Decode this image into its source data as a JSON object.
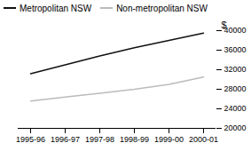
{
  "chart_data": {
    "type": "line",
    "categories": [
      "1995-96",
      "1996-97",
      "1997-98",
      "1998-99",
      "1999-00",
      "2000-01"
    ],
    "series": [
      {
        "name": "Metropolitan NSW",
        "color": "#111111",
        "values": [
          31200,
          33000,
          34800,
          36500,
          38000,
          39500
        ]
      },
      {
        "name": "Non-metropolitan NSW",
        "color": "#bbbbbb",
        "values": [
          25600,
          26400,
          27200,
          28000,
          29000,
          30500
        ]
      }
    ],
    "ylabel": "$",
    "ylim": [
      20000,
      40000
    ],
    "yticks": [
      20000,
      24000,
      28000,
      32000,
      36000,
      40000
    ],
    "legend": "upper left",
    "grid": false
  }
}
